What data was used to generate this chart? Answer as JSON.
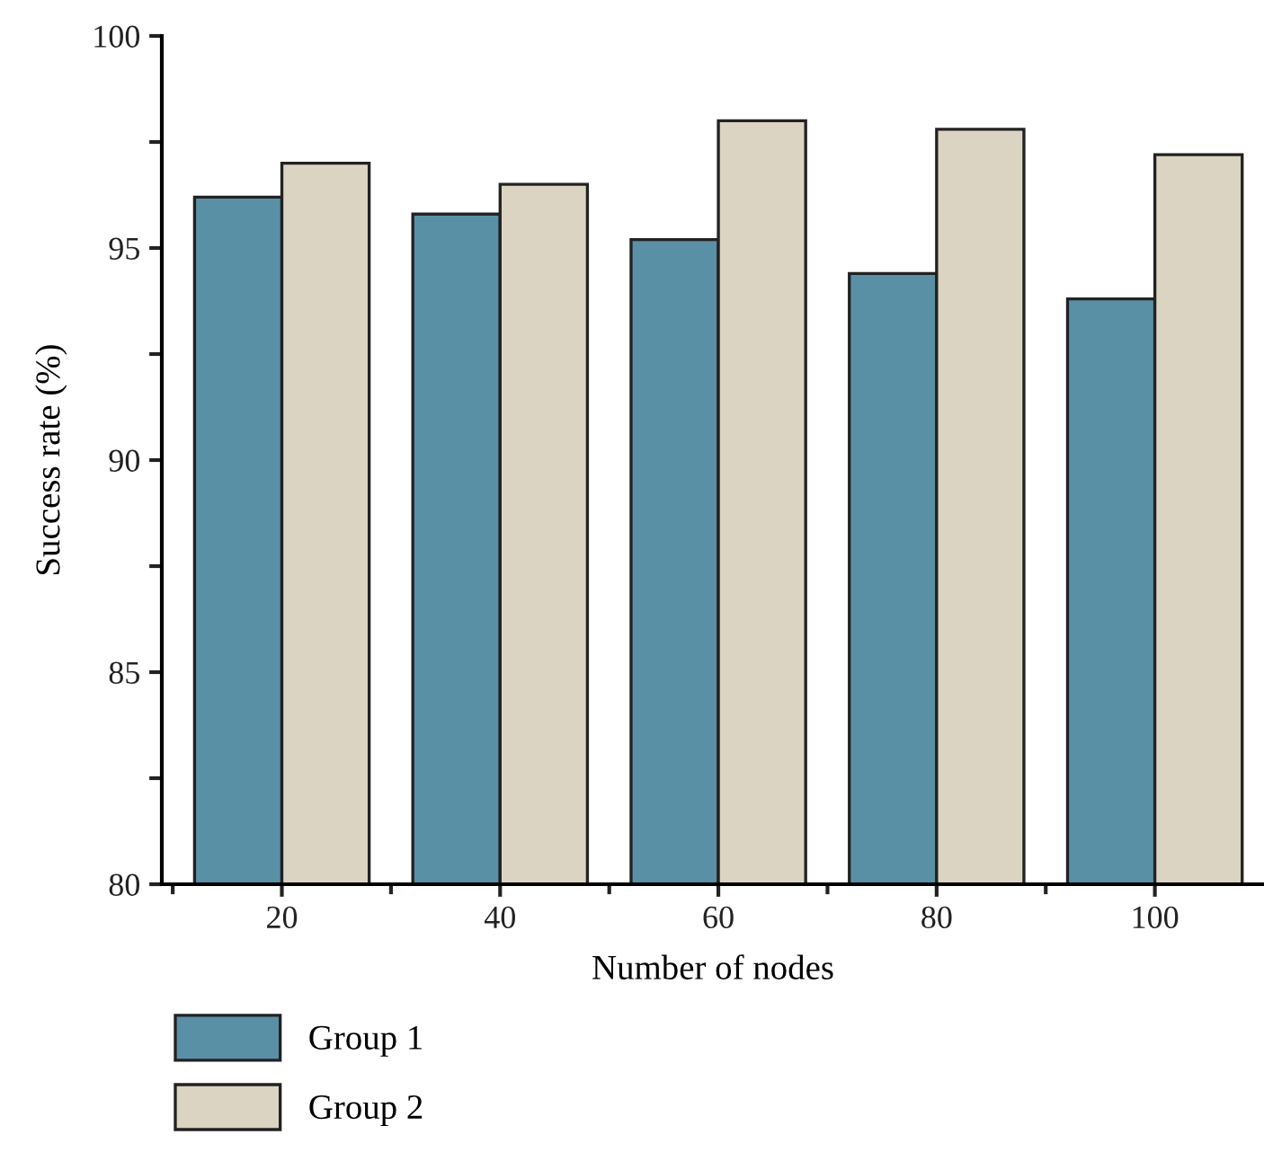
{
  "chart_data": {
    "type": "bar",
    "xlabel": "Number of nodes",
    "ylabel": "Success rate (%)",
    "categories": [
      "20",
      "40",
      "60",
      "80",
      "100"
    ],
    "series": [
      {
        "name": "Group 1",
        "color": "#5a90a6",
        "values": [
          96.2,
          95.8,
          95.2,
          94.4,
          93.8
        ]
      },
      {
        "name": "Group 2",
        "color": "#dcd4c2",
        "values": [
          97.0,
          96.5,
          98.0,
          97.8,
          97.2
        ]
      }
    ],
    "ylim": [
      80,
      100
    ],
    "yticks": [
      80,
      {
        "value": 82.5,
        "label": null
      },
      85,
      {
        "value": 87.5,
        "label": null
      },
      90,
      {
        "value": 92.5,
        "label": null
      },
      95,
      {
        "value": 97.5,
        "label": null
      },
      100
    ],
    "grid": false,
    "legend": "bottom left"
  }
}
